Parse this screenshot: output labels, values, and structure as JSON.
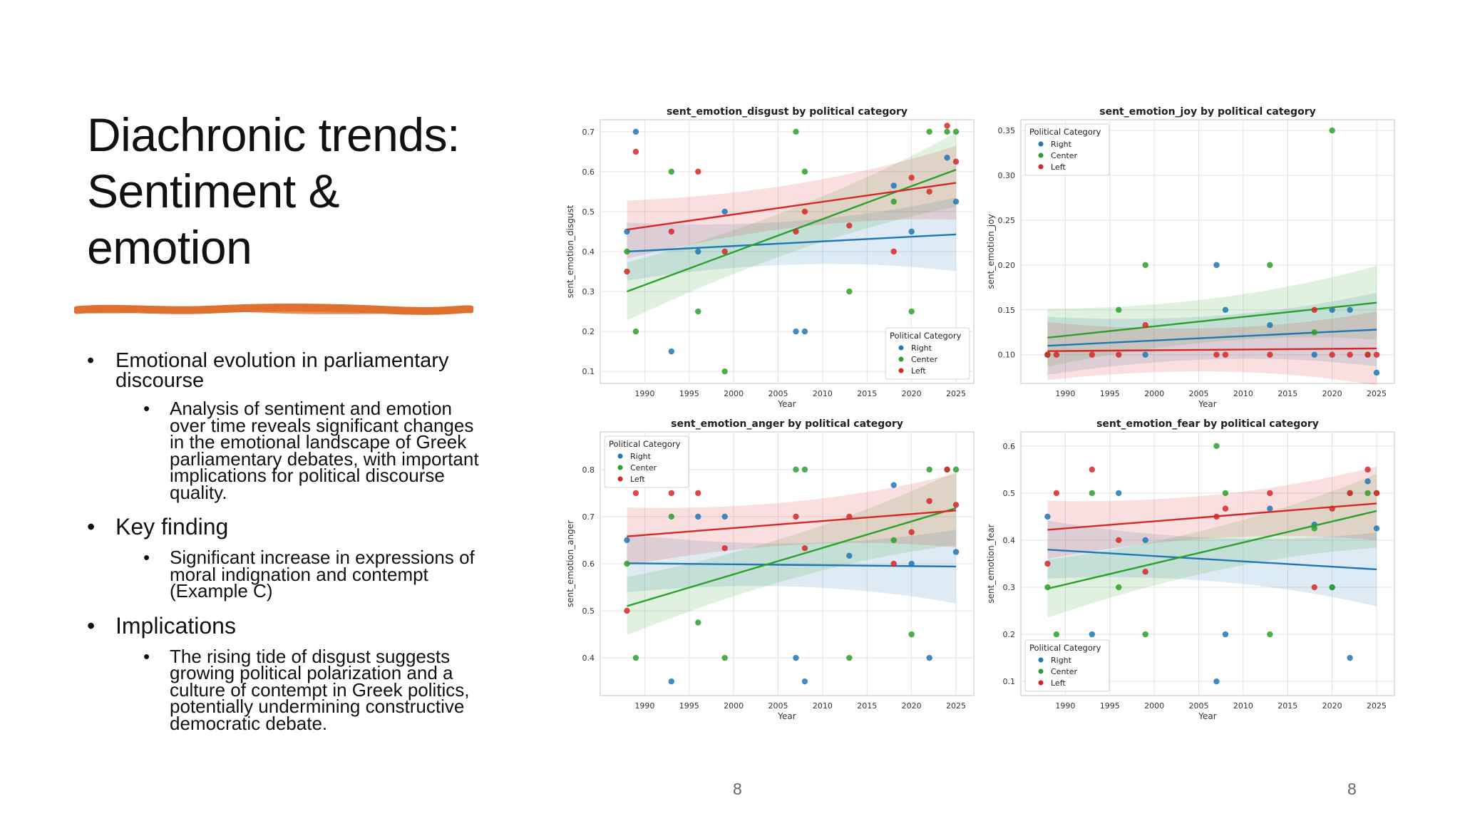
{
  "slide": {
    "title_lines": [
      "Diachronic trends:",
      "Sentiment &",
      "emotion"
    ],
    "page_number_left": "8",
    "page_number_right": "8",
    "bullets": [
      {
        "text": "Emotional evolution in parliamentary discourse",
        "sub": "Analysis of sentiment and emotion over time reveals significant changes in the emotional landscape of Greek parliamentary debates, with important implications for political discourse quality."
      },
      {
        "text": "Key finding",
        "sub": "Significant increase in expressions of moral indignation and contempt (Example C)"
      },
      {
        "text": "Implications",
        "sub": "The rising tide of disgust suggests growing political polarization and a culture of contempt in Greek politics, potentially undermining constructive democratic debate."
      }
    ]
  },
  "colors": {
    "Right": "#1f77b4",
    "Center": "#2ca02c",
    "Left": "#d62728",
    "accent": "#e07030"
  },
  "chart_data": [
    {
      "type": "scatter",
      "title": "sent_emotion_disgust by political category",
      "xlabel": "Year",
      "ylabel": "sent_emotion_disgust",
      "xlim": [
        1985,
        2027
      ],
      "ylim": [
        0.07,
        0.73
      ],
      "xticks": [
        1990,
        1995,
        2000,
        2005,
        2010,
        2015,
        2020,
        2025
      ],
      "yticks": [
        0.1,
        0.2,
        0.3,
        0.4,
        0.5,
        0.6,
        0.7
      ],
      "legend_title": "Political Category",
      "legend_position": "lower-right",
      "series": [
        {
          "name": "Right",
          "points": [
            [
              1988,
              0.45
            ],
            [
              1989,
              0.7
            ],
            [
              1993,
              0.15
            ],
            [
              1996,
              0.4
            ],
            [
              1999,
              0.5
            ],
            [
              2007,
              0.2
            ],
            [
              2008,
              0.2
            ],
            [
              2018,
              0.565
            ],
            [
              2020,
              0.45
            ],
            [
              2024,
              0.635
            ],
            [
              2025,
              0.525
            ]
          ],
          "trend": [
            0.4,
            0.443
          ]
        },
        {
          "name": "Center",
          "points": [
            [
              1988,
              0.4
            ],
            [
              1989,
              0.2
            ],
            [
              1993,
              0.6
            ],
            [
              1996,
              0.25
            ],
            [
              1999,
              0.1
            ],
            [
              2007,
              0.7
            ],
            [
              2008,
              0.6
            ],
            [
              2013,
              0.3
            ],
            [
              2018,
              0.525
            ],
            [
              2020,
              0.25
            ],
            [
              2022,
              0.7
            ],
            [
              2024,
              0.7
            ],
            [
              2025,
              0.7
            ]
          ],
          "trend": [
            0.3,
            0.605
          ]
        },
        {
          "name": "Left",
          "points": [
            [
              1988,
              0.35
            ],
            [
              1989,
              0.65
            ],
            [
              1993,
              0.45
            ],
            [
              1996,
              0.6
            ],
            [
              1999,
              0.4
            ],
            [
              2007,
              0.45
            ],
            [
              2008,
              0.5
            ],
            [
              2013,
              0.465
            ],
            [
              2018,
              0.4
            ],
            [
              2020,
              0.585
            ],
            [
              2022,
              0.55
            ],
            [
              2024,
              0.715
            ],
            [
              2025,
              0.625
            ]
          ],
          "trend": [
            0.455,
            0.572
          ]
        }
      ]
    },
    {
      "type": "scatter",
      "title": "sent_emotion_joy by political category",
      "xlabel": "Year",
      "ylabel": "sent_emotion_joy",
      "xlim": [
        1985,
        2027
      ],
      "ylim": [
        0.068,
        0.362
      ],
      "xticks": [
        1990,
        1995,
        2000,
        2005,
        2010,
        2015,
        2020,
        2025
      ],
      "yticks": [
        0.1,
        0.15,
        0.2,
        0.25,
        0.3,
        0.35
      ],
      "legend_title": "Political Category",
      "legend_position": "upper-left",
      "series": [
        {
          "name": "Right",
          "points": [
            [
              1988,
              0.1
            ],
            [
              1999,
              0.1
            ],
            [
              2007,
              0.2
            ],
            [
              2008,
              0.15
            ],
            [
              2013,
              0.133
            ],
            [
              2018,
              0.1
            ],
            [
              2020,
              0.15
            ],
            [
              2022,
              0.15
            ],
            [
              2025,
              0.08
            ]
          ],
          "trend": [
            0.11,
            0.128
          ]
        },
        {
          "name": "Center",
          "points": [
            [
              1988,
              0.1
            ],
            [
              1996,
              0.15
            ],
            [
              1999,
              0.2
            ],
            [
              2013,
              0.2
            ],
            [
              2018,
              0.125
            ],
            [
              2020,
              0.35
            ],
            [
              2024,
              0.1
            ]
          ],
          "trend": [
            0.119,
            0.158
          ]
        },
        {
          "name": "Left",
          "points": [
            [
              1988,
              0.1
            ],
            [
              1989,
              0.1
            ],
            [
              1993,
              0.1
            ],
            [
              1996,
              0.1
            ],
            [
              1999,
              0.133
            ],
            [
              2007,
              0.1
            ],
            [
              2008,
              0.1
            ],
            [
              2013,
              0.1
            ],
            [
              2018,
              0.15
            ],
            [
              2020,
              0.1
            ],
            [
              2022,
              0.1
            ],
            [
              2024,
              0.1
            ],
            [
              2025,
              0.1
            ]
          ],
          "trend": [
            0.104,
            0.107
          ]
        }
      ]
    },
    {
      "type": "scatter",
      "title": "sent_emotion_anger by political category",
      "xlabel": "Year",
      "ylabel": "sent_emotion_anger",
      "xlim": [
        1985,
        2027
      ],
      "ylim": [
        0.32,
        0.88
      ],
      "xticks": [
        1990,
        1995,
        2000,
        2005,
        2010,
        2015,
        2020,
        2025
      ],
      "yticks": [
        0.4,
        0.5,
        0.6,
        0.7,
        0.8
      ],
      "legend_title": "Political Category",
      "legend_position": "upper-left",
      "series": [
        {
          "name": "Right",
          "points": [
            [
              1988,
              0.65
            ],
            [
              1993,
              0.35
            ],
            [
              1996,
              0.7
            ],
            [
              1999,
              0.7
            ],
            [
              2007,
              0.4
            ],
            [
              2008,
              0.35
            ],
            [
              2013,
              0.617
            ],
            [
              2018,
              0.767
            ],
            [
              2020,
              0.6
            ],
            [
              2022,
              0.4
            ],
            [
              2025,
              0.625
            ]
          ],
          "trend": [
            0.601,
            0.594
          ]
        },
        {
          "name": "Center",
          "points": [
            [
              1988,
              0.6
            ],
            [
              1989,
              0.4
            ],
            [
              1993,
              0.7
            ],
            [
              1996,
              0.475
            ],
            [
              1999,
              0.4
            ],
            [
              2007,
              0.8
            ],
            [
              2008,
              0.8
            ],
            [
              2013,
              0.4
            ],
            [
              2018,
              0.65
            ],
            [
              2020,
              0.45
            ],
            [
              2022,
              0.8
            ],
            [
              2024,
              0.8
            ],
            [
              2025,
              0.8
            ]
          ],
          "trend": [
            0.51,
            0.718
          ]
        },
        {
          "name": "Left",
          "points": [
            [
              1988,
              0.5
            ],
            [
              1989,
              0.75
            ],
            [
              1993,
              0.75
            ],
            [
              1996,
              0.75
            ],
            [
              1999,
              0.633
            ],
            [
              2007,
              0.7
            ],
            [
              2008,
              0.633
            ],
            [
              2013,
              0.7
            ],
            [
              2018,
              0.6
            ],
            [
              2020,
              0.667
            ],
            [
              2022,
              0.733
            ],
            [
              2024,
              0.8
            ],
            [
              2025,
              0.725
            ]
          ],
          "trend": [
            0.658,
            0.713
          ]
        }
      ]
    },
    {
      "type": "scatter",
      "title": "sent_emotion_fear by political category",
      "xlabel": "Year",
      "ylabel": "sent_emotion_fear",
      "xlim": [
        1985,
        2027
      ],
      "ylim": [
        0.07,
        0.63
      ],
      "xticks": [
        1990,
        1995,
        2000,
        2005,
        2010,
        2015,
        2020,
        2025
      ],
      "yticks": [
        0.1,
        0.2,
        0.3,
        0.4,
        0.5,
        0.6
      ],
      "legend_title": "Political Category",
      "legend_position": "lower-left",
      "series": [
        {
          "name": "Right",
          "points": [
            [
              1988,
              0.45
            ],
            [
              1993,
              0.2
            ],
            [
              1996,
              0.5
            ],
            [
              1999,
              0.4
            ],
            [
              2007,
              0.1
            ],
            [
              2008,
              0.2
            ],
            [
              2013,
              0.467
            ],
            [
              2018,
              0.433
            ],
            [
              2020,
              0.3
            ],
            [
              2022,
              0.15
            ],
            [
              2024,
              0.525
            ],
            [
              2025,
              0.425
            ]
          ],
          "trend": [
            0.38,
            0.338
          ]
        },
        {
          "name": "Center",
          "points": [
            [
              1988,
              0.3
            ],
            [
              1989,
              0.2
            ],
            [
              1993,
              0.5
            ],
            [
              1996,
              0.3
            ],
            [
              1999,
              0.2
            ],
            [
              2007,
              0.6
            ],
            [
              2008,
              0.5
            ],
            [
              2013,
              0.2
            ],
            [
              2018,
              0.425
            ],
            [
              2020,
              0.3
            ],
            [
              2022,
              0.5
            ],
            [
              2024,
              0.5
            ],
            [
              2025,
              0.5
            ]
          ],
          "trend": [
            0.297,
            0.462
          ]
        },
        {
          "name": "Left",
          "points": [
            [
              1988,
              0.35
            ],
            [
              1989,
              0.5
            ],
            [
              1993,
              0.55
            ],
            [
              1996,
              0.4
            ],
            [
              1999,
              0.333
            ],
            [
              2007,
              0.45
            ],
            [
              2008,
              0.467
            ],
            [
              2013,
              0.5
            ],
            [
              2018,
              0.3
            ],
            [
              2020,
              0.467
            ],
            [
              2022,
              0.5
            ],
            [
              2024,
              0.55
            ],
            [
              2025,
              0.5
            ]
          ],
          "trend": [
            0.422,
            0.478
          ]
        }
      ]
    }
  ]
}
